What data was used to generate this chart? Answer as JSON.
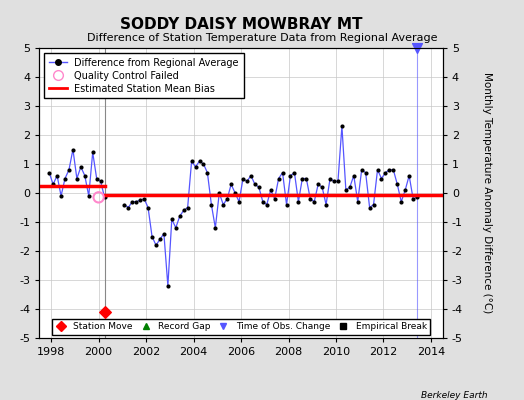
{
  "title": "SODDY DAISY MOWBRAY MT",
  "subtitle": "Difference of Station Temperature Data from Regional Average",
  "ylabel_right": "Monthly Temperature Anomaly Difference (°C)",
  "ylim": [
    -5,
    5
  ],
  "xlim": [
    1997.5,
    2014.5
  ],
  "xticks": [
    1998,
    2000,
    2002,
    2004,
    2006,
    2008,
    2010,
    2012,
    2014
  ],
  "yticks": [
    -5,
    -4,
    -3,
    -2,
    -1,
    0,
    1,
    2,
    3,
    4,
    5
  ],
  "bias_line1": {
    "x": [
      1997.5,
      2000.25
    ],
    "y": [
      0.25,
      0.25
    ]
  },
  "bias_line2": {
    "x": [
      2000.25,
      2014.5
    ],
    "y": [
      -0.07,
      -0.07
    ]
  },
  "breakline_x": 2000.25,
  "station_move_x": 2000.25,
  "station_move_y": -4.1,
  "time_of_obs_change_x": 2013.42,
  "qc_fail_x": 2000.0,
  "qc_fail_y": -0.15,
  "background_color": "#e0e0e0",
  "plot_bg_color": "#ffffff",
  "line_color": "#5555ff",
  "bias_color": "#ff0000",
  "grid_color": "#c8c8c8",
  "breakline_color": "#888888",
  "segment1_dates": [
    1997.917,
    1998.083,
    1998.25,
    1998.417,
    1998.583,
    1998.75,
    1998.917,
    1999.083,
    1999.25,
    1999.417,
    1999.583,
    1999.75,
    1999.917,
    2000.083,
    2000.25
  ],
  "segment1_values": [
    0.7,
    0.3,
    0.6,
    -0.1,
    0.5,
    0.8,
    1.5,
    0.5,
    0.9,
    0.6,
    -0.1,
    1.4,
    0.5,
    0.4,
    -0.15
  ],
  "segment2_dates": [
    2001.083,
    2001.25,
    2001.417,
    2001.583,
    2001.75,
    2001.917,
    2002.083,
    2002.25,
    2002.417,
    2002.583,
    2002.75,
    2002.917,
    2003.083,
    2003.25,
    2003.417,
    2003.583,
    2003.75,
    2003.917,
    2004.083,
    2004.25,
    2004.417,
    2004.583,
    2004.75,
    2004.917,
    2005.083,
    2005.25,
    2005.417,
    2005.583,
    2005.75,
    2005.917,
    2006.083,
    2006.25,
    2006.417,
    2006.583,
    2006.75,
    2006.917,
    2007.083,
    2007.25,
    2007.417,
    2007.583,
    2007.75,
    2007.917,
    2008.083,
    2008.25,
    2008.417,
    2008.583,
    2008.75,
    2008.917,
    2009.083,
    2009.25,
    2009.417,
    2009.583,
    2009.75,
    2009.917,
    2010.083,
    2010.25,
    2010.417,
    2010.583,
    2010.75,
    2010.917,
    2011.083,
    2011.25,
    2011.417,
    2011.583,
    2011.75,
    2011.917,
    2012.083,
    2012.25,
    2012.417,
    2012.583,
    2012.75,
    2012.917,
    2013.083,
    2013.25,
    2013.417
  ],
  "segment2_values": [
    -0.4,
    -0.5,
    -0.3,
    -0.3,
    -0.25,
    -0.2,
    -0.5,
    -1.5,
    -1.8,
    -1.6,
    -1.4,
    -3.2,
    -0.9,
    -1.2,
    -0.8,
    -0.6,
    -0.5,
    1.1,
    0.9,
    1.1,
    1.0,
    0.7,
    -0.4,
    -1.2,
    0.0,
    -0.4,
    -0.2,
    0.3,
    0.0,
    -0.3,
    0.5,
    0.4,
    0.6,
    0.3,
    0.2,
    -0.3,
    -0.4,
    0.1,
    -0.2,
    0.5,
    0.7,
    -0.4,
    0.6,
    0.7,
    -0.3,
    0.5,
    0.5,
    -0.2,
    -0.3,
    0.3,
    0.2,
    -0.4,
    0.5,
    0.4,
    0.4,
    2.3,
    0.1,
    0.2,
    0.6,
    -0.3,
    0.8,
    0.7,
    -0.5,
    -0.4,
    0.8,
    0.5,
    0.7,
    0.8,
    0.8,
    0.3,
    -0.3,
    0.1,
    0.6,
    -0.2,
    -0.15
  ]
}
